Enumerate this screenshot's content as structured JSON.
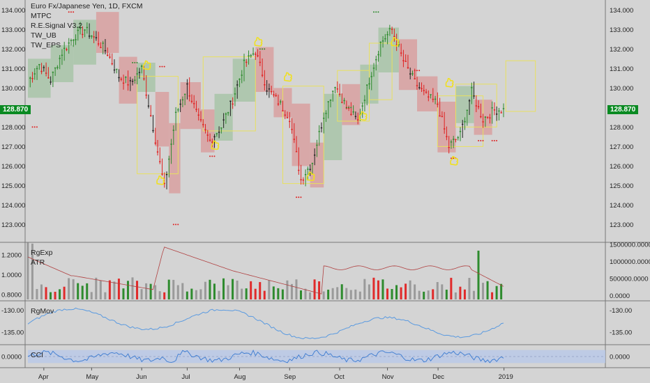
{
  "title": "Euro Fx/Japanese Yen, 1D, FXCM",
  "indicators": [
    "MTPC",
    "R.E.Signal V3.2",
    "TW_UB",
    "TW_EPS"
  ],
  "last_price": "128.870",
  "panes": {
    "regexp": {
      "labels": [
        "RgExp",
        "ATR"
      ]
    },
    "rgmov": {
      "labels": [
        "RgMov"
      ]
    },
    "cci": {
      "labels": [
        "CCI"
      ]
    }
  },
  "colors": {
    "up": "#2e8b2e",
    "down": "#e02020",
    "neutral": "#222222",
    "box_up": "#a8c4a8",
    "box_down": "#d8a0a0",
    "outline": "#e8e060",
    "signal": "#f0e020",
    "atr_line": "#b04040",
    "rgmov_line": "#5a9ae0",
    "cci_line": "#3a7ad0",
    "cci_band": "#b8c8e8",
    "price_tag": "#0a8a22"
  },
  "chart_data": [
    {
      "type": "line",
      "title": "Euro Fx/Japanese Yen, 1D, FXCM",
      "xlabel": "",
      "ylabel": "",
      "x_ticks": [
        "Apr",
        "May",
        "Jun",
        "Jul",
        "Aug",
        "Sep",
        "Oct",
        "Nov",
        "Dec",
        "2019"
      ],
      "y_ticks": [
        "123.000",
        "124.000",
        "125.000",
        "126.000",
        "127.000",
        "128.000",
        "129.000",
        "130.000",
        "131.000",
        "132.000",
        "133.000",
        "134.000"
      ],
      "ylim": [
        122.3,
        134.3
      ],
      "series": [
        {
          "name": "",
          "x": [
            0,
            5,
            10,
            15,
            20,
            25,
            30,
            35,
            40,
            45,
            50,
            55,
            60,
            65,
            70,
            75,
            80,
            85,
            90,
            95,
            100,
            105,
            110,
            115,
            120,
            125,
            130,
            135,
            140,
            145,
            150,
            155,
            160,
            165,
            170,
            175,
            180,
            185,
            190,
            195,
            200,
            205
          ],
          "values": [
            130.3,
            131.2,
            130.4,
            131.8,
            132.6,
            133.0,
            132.5,
            131.8,
            130.6,
            130.2,
            131.0,
            128.0,
            124.9,
            128.6,
            130.1,
            128.4,
            127.3,
            128.0,
            129.4,
            131.2,
            131.9,
            130.0,
            129.3,
            128.5,
            125.3,
            126.2,
            128.6,
            130.2,
            129.0,
            128.3,
            130.4,
            132.3,
            133.0,
            131.4,
            130.3,
            129.6,
            129.2,
            127.0,
            127.6,
            129.8,
            128.4,
            128.87
          ]
        }
      ]
    },
    {
      "type": "bar",
      "title": "",
      "ylabel": "",
      "y_ticks_left": [
        "0.8000",
        "1.0000",
        "1.2000"
      ],
      "y_ticks_right": [
        "0.0000",
        "500000.0000",
        "1000000.0000",
        "1500000.0000"
      ],
      "ylim": [
        0.75,
        1.3
      ]
    },
    {
      "type": "line",
      "title": "",
      "y_ticks": [
        "-130.00",
        "-135.00"
      ],
      "ylim": [
        -137.5,
        -128.5
      ]
    },
    {
      "type": "area",
      "title": "",
      "y_ticks": [
        "0.0000"
      ],
      "ylim": [
        -1.5,
        1.5
      ]
    }
  ]
}
